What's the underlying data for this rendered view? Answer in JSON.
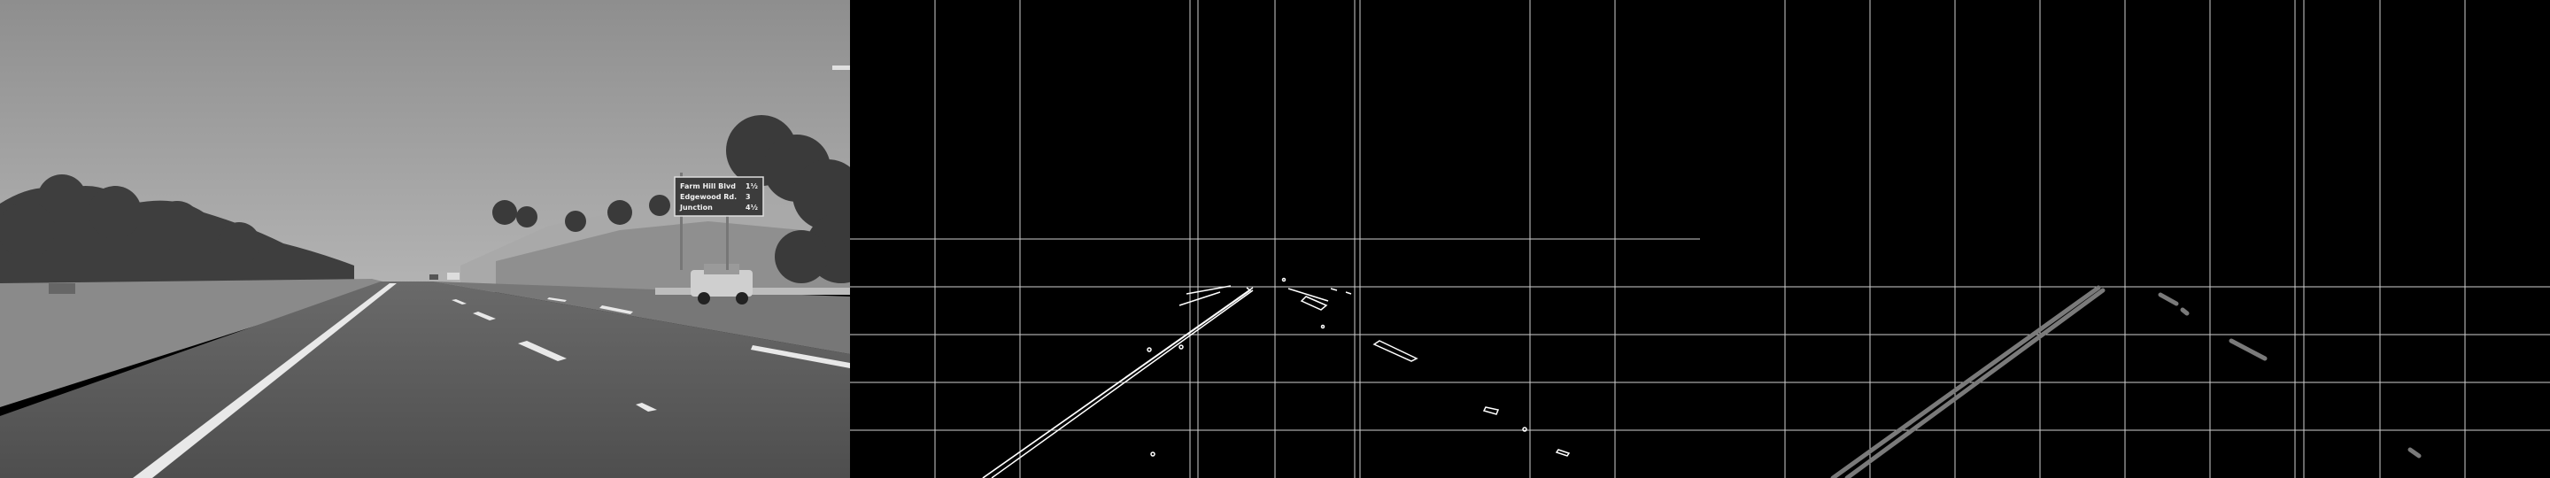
{
  "panels": [
    {
      "id": "photo",
      "kind": "grayscale-road-photo"
    },
    {
      "id": "edges",
      "kind": "canny-edges-with-grid"
    },
    {
      "id": "hough",
      "kind": "hough-lines-with-grid"
    }
  ],
  "road_sign": {
    "rows": [
      {
        "name": "Farm Hill Blvd",
        "distance": "1½"
      },
      {
        "name": "Edgewood Rd.",
        "distance": "3"
      },
      {
        "name": "Junction",
        "distance": "4½"
      }
    ]
  },
  "colors": {
    "sky": "#9a9a9a",
    "road": "#555555",
    "grid": "#cfcfcf",
    "edge": "#ffffff",
    "lane_detect": "#7a7a7a"
  }
}
